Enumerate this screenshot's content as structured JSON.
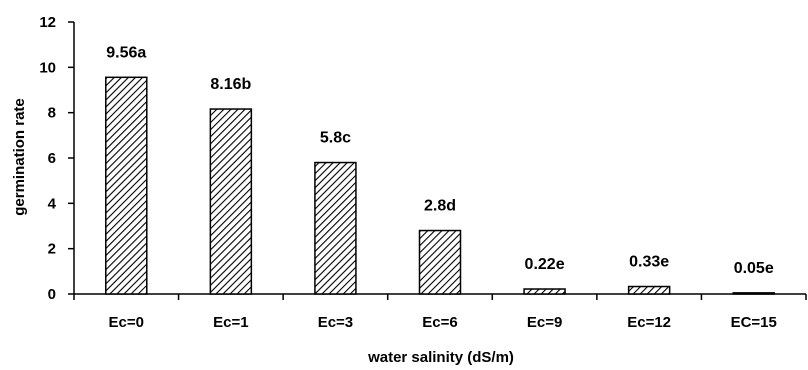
{
  "chart_data": {
    "type": "bar",
    "title": "",
    "xlabel": "water salinity (dS/m)",
    "ylabel": "germination rate",
    "ylim": [
      0,
      12
    ],
    "yticks": [
      0,
      2,
      4,
      6,
      8,
      10,
      12
    ],
    "grid": false,
    "legend": "none",
    "categories": [
      "Ec=0",
      "Ec=1",
      "Ec=3",
      "Ec=6",
      "Ec=9",
      "Ec=12",
      "EC=15"
    ],
    "values": [
      9.56,
      8.16,
      5.8,
      2.8,
      0.22,
      0.33,
      0.05
    ],
    "data_labels": [
      "9.56a",
      "8.16b",
      "5.8c",
      "2.8d",
      "0.22e",
      "0.33e",
      "0.05e"
    ],
    "bar_pattern": "diagonal-hatch",
    "colors": {
      "bar_fill": "#ffffff",
      "hatch": "#000000",
      "axis": "#000000"
    }
  }
}
